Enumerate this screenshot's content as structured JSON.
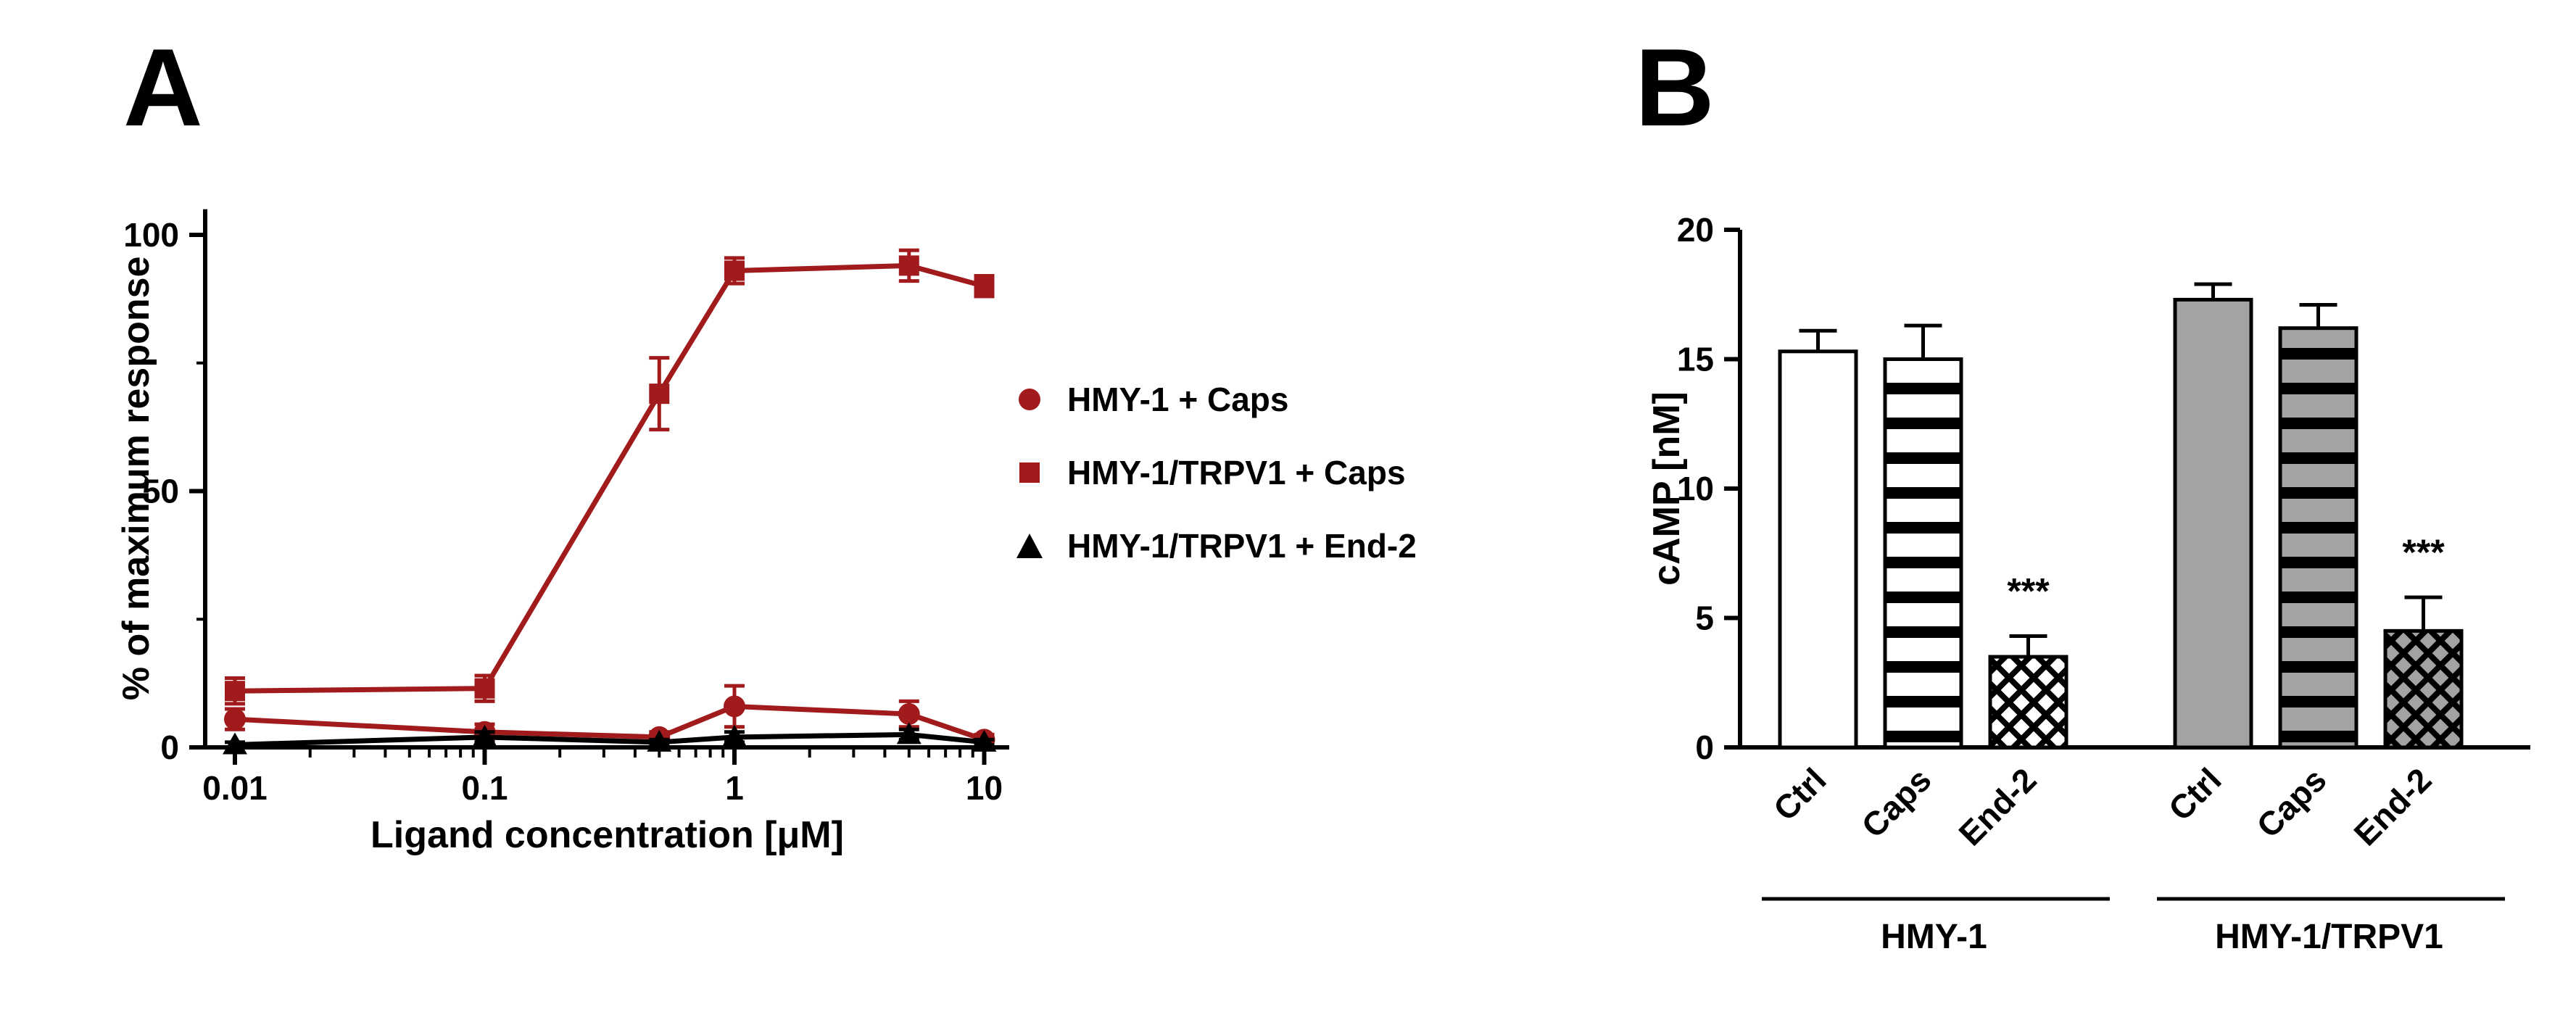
{
  "figure": {
    "background": "#ffffff",
    "panels": {
      "a": {
        "letter": "A"
      },
      "b": {
        "letter": "B"
      }
    }
  },
  "colors": {
    "dark_red": "#a11a1c",
    "black": "#000000",
    "gray_fill": "#a3a3a3",
    "white": "#ffffff"
  },
  "chart_data": [
    {
      "type": "line",
      "panel": "A",
      "title": "",
      "xlabel": "Ligand concentration [μM]",
      "ylabel": "% of maximum response",
      "xscale": "log",
      "xlim": [
        0.0076,
        12.5
      ],
      "ylim": [
        0,
        105
      ],
      "xticks": [
        0.01,
        0.1,
        1,
        10
      ],
      "xtick_labels": [
        "0.01",
        "0.1",
        "1",
        "10"
      ],
      "yticks": [
        0,
        50,
        100
      ],
      "ytick_labels": [
        "0",
        "50",
        "100"
      ],
      "grid": false,
      "legend_position": "right",
      "x": [
        0.01,
        0.1,
        0.5,
        1,
        5,
        10
      ],
      "series": [
        {
          "name": "HMY-1 + Caps",
          "marker": "circle",
          "color": "#a11a1c",
          "values": [
            5.5,
            3,
            2,
            8,
            6.5,
            1.5
          ],
          "errors": [
            2,
            1.5,
            1,
            4,
            2.5,
            1
          ]
        },
        {
          "name": "HMY-1/TRPV1 + Caps",
          "marker": "square",
          "color": "#a11a1c",
          "values": [
            11,
            11.5,
            69,
            93,
            94,
            90
          ],
          "errors": [
            2.5,
            2.5,
            7,
            2.5,
            3,
            2
          ]
        },
        {
          "name": "HMY-1/TRPV1 + End-2",
          "marker": "triangle",
          "color": "#000000",
          "values": [
            0.5,
            2,
            1,
            2,
            2.5,
            1
          ],
          "errors": [
            0.5,
            1,
            0.5,
            1,
            1,
            0.5
          ]
        }
      ]
    },
    {
      "type": "bar",
      "panel": "B",
      "title": "",
      "ylabel": "cAMP [nM]",
      "ylim": [
        0,
        20
      ],
      "yticks": [
        0,
        5,
        10,
        15,
        20
      ],
      "ytick_labels": [
        "0",
        "5",
        "10",
        "15",
        "20"
      ],
      "grid": false,
      "groups": [
        {
          "label": "HMY-1",
          "bars": [
            {
              "label": "Ctrl",
              "value": 15.3,
              "error": 0.8,
              "fill": "#ffffff",
              "pattern": "plain",
              "sig": ""
            },
            {
              "label": "Caps",
              "value": 15.0,
              "error": 1.3,
              "fill": "#ffffff",
              "pattern": "hstripes",
              "sig": ""
            },
            {
              "label": "End-2",
              "value": 3.5,
              "error": 0.8,
              "fill": "#ffffff",
              "pattern": "crosshatch",
              "sig": "***"
            }
          ]
        },
        {
          "label": "HMY-1/TRPV1",
          "bars": [
            {
              "label": "Ctrl",
              "value": 17.3,
              "error": 0.6,
              "fill": "#a3a3a3",
              "pattern": "plain",
              "sig": ""
            },
            {
              "label": "Caps",
              "value": 16.2,
              "error": 0.9,
              "fill": "#a3a3a3",
              "pattern": "hstripes",
              "sig": ""
            },
            {
              "label": "End-2",
              "value": 4.5,
              "error": 1.3,
              "fill": "#a3a3a3",
              "pattern": "crosshatch",
              "sig": "***"
            }
          ]
        }
      ]
    }
  ]
}
